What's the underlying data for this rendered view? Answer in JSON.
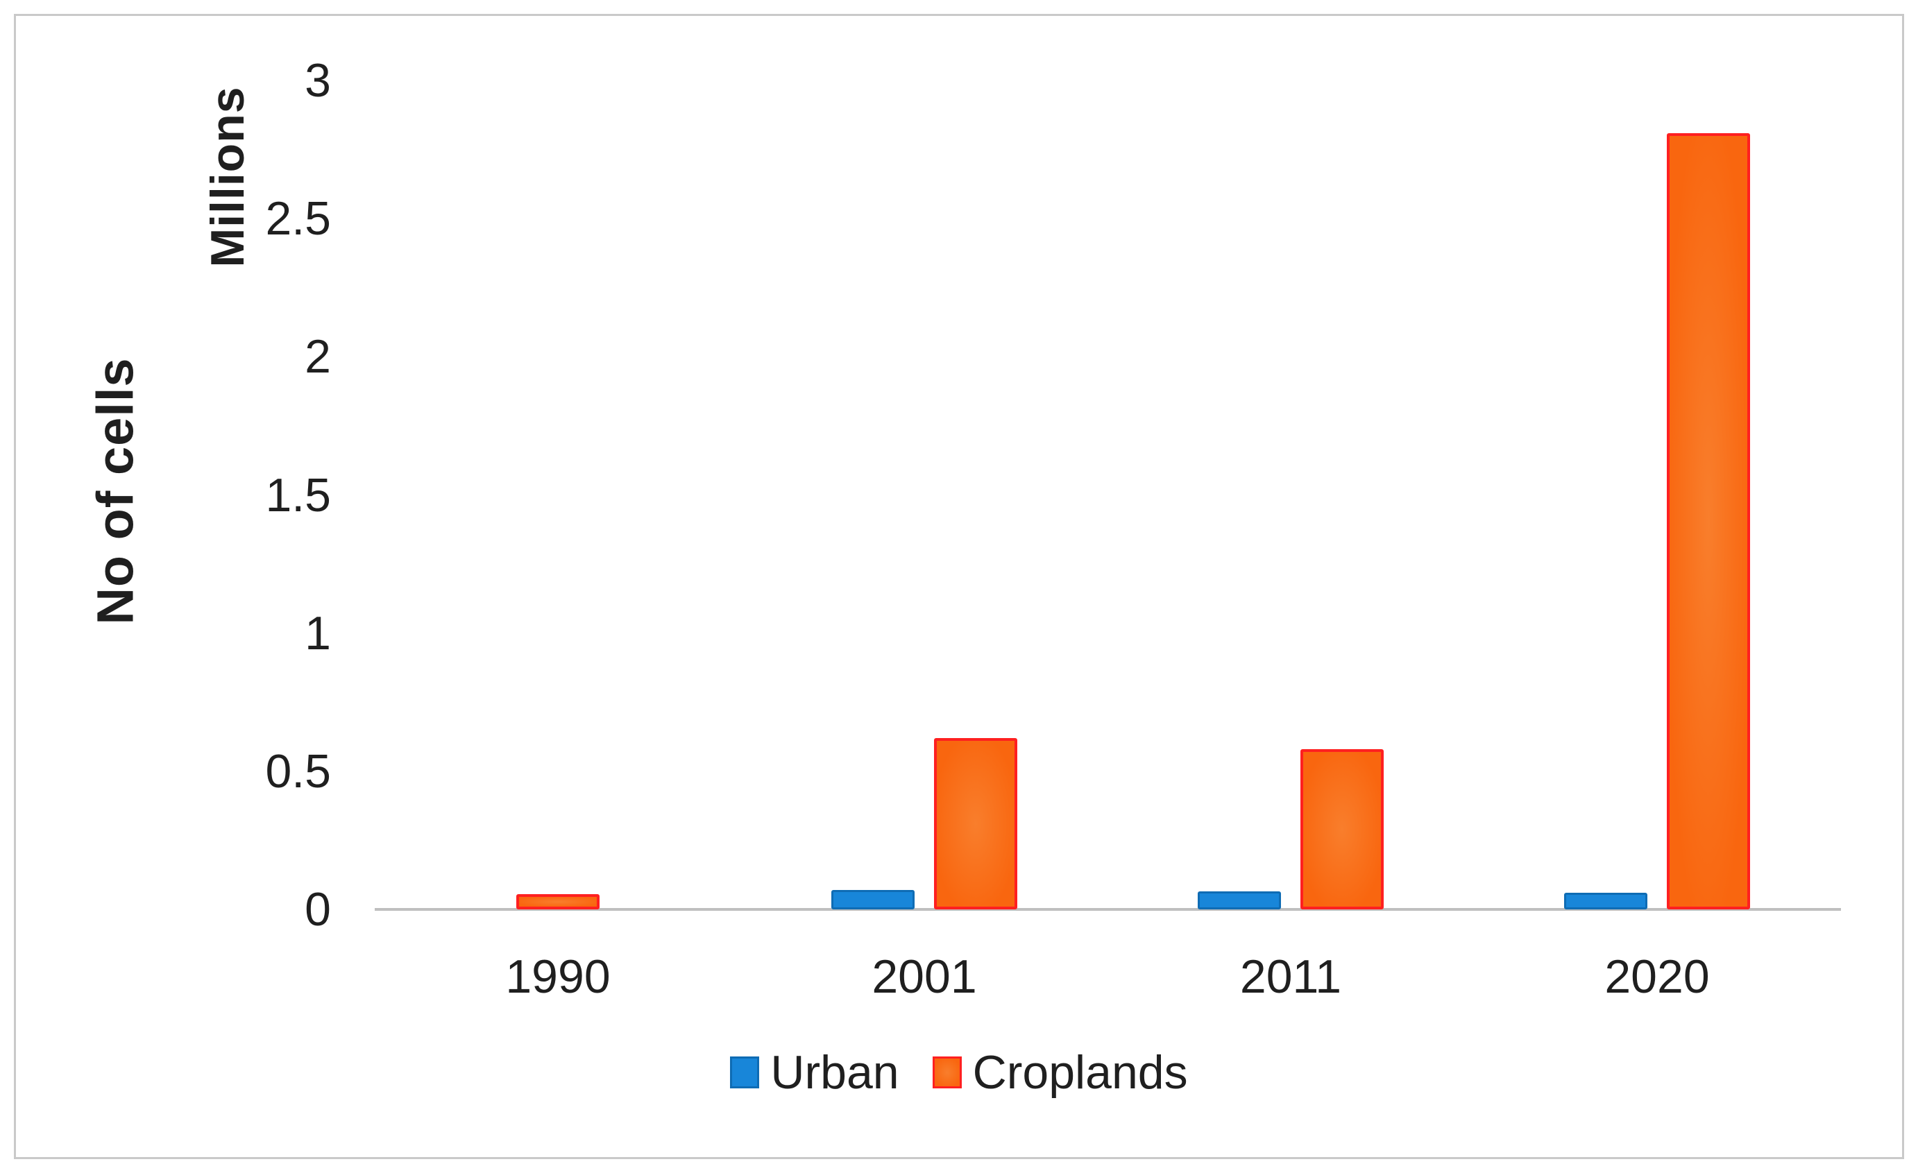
{
  "figure": {
    "background": "#ffffff",
    "border_color": "#c9c9c9"
  },
  "chart_data": {
    "type": "bar",
    "title": "",
    "xlabel": "",
    "ylabel": "No of cells",
    "y_unit_label": "Millions",
    "categories": [
      "1990",
      "2001",
      "2011",
      "2020"
    ],
    "series": [
      {
        "name": "Urban",
        "values": [
          0,
          0.07,
          0.065,
          0.06
        ],
        "fill": "#1886d9",
        "border": "#0f6cb4"
      },
      {
        "name": "Croplands",
        "values": [
          0.055,
          0.62,
          0.58,
          2.81
        ],
        "fill": "#f9660f",
        "fill_inner": "#f97e2c",
        "border": "#fe2020"
      }
    ],
    "ylim": [
      0,
      3
    ],
    "yticks": [
      3,
      2.5,
      2,
      1.5,
      1,
      0.5,
      0
    ],
    "ytick_labels": [
      "3",
      "2.5",
      "2",
      "1.5",
      "1",
      "0.5",
      "0"
    ],
    "grid": false,
    "legend_position": "bottom",
    "axis_line_color": "#bfbfbf",
    "text_color": "#1f1f1f"
  }
}
